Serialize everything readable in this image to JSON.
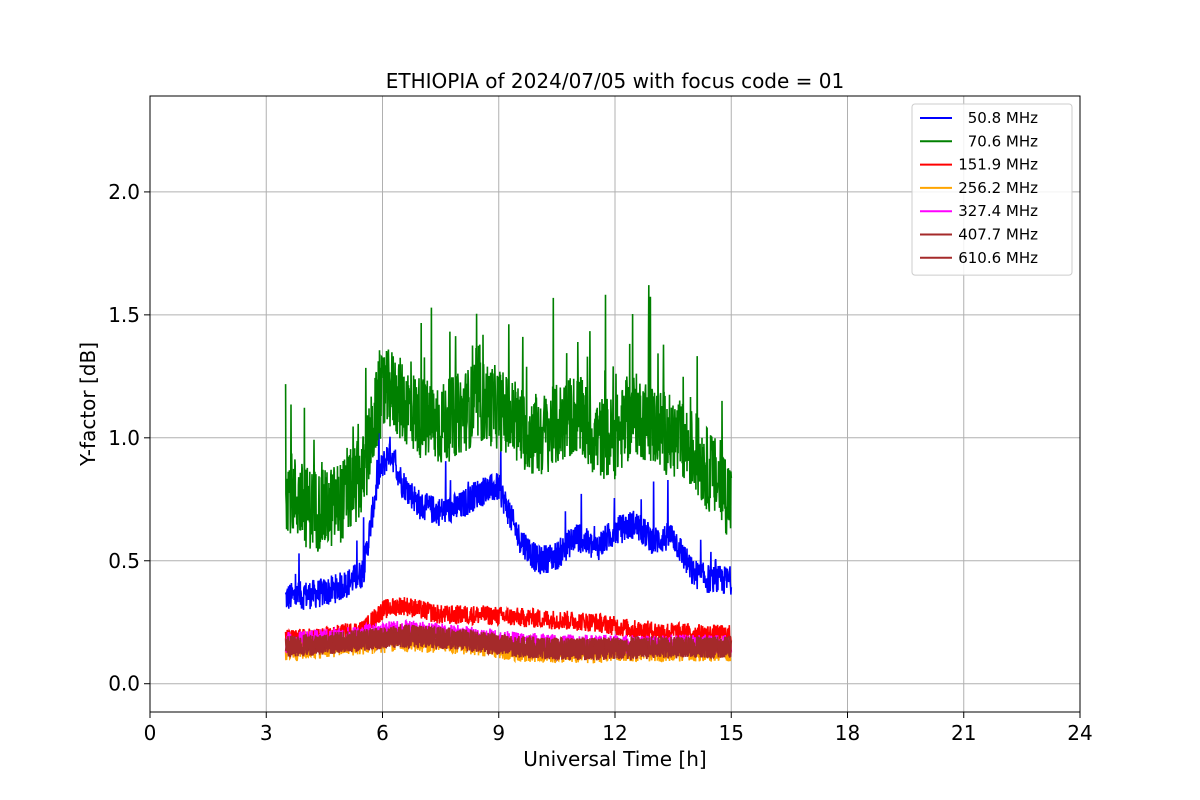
{
  "chart_data": {
    "type": "line",
    "title": "ETHIOPIA of 2024/07/05 with focus code = 01",
    "xlabel": "Universal Time [h]",
    "ylabel": "Y-factor [dB]",
    "xlim": [
      0,
      24
    ],
    "ylim": [
      -0.115,
      2.39
    ],
    "x_ticks": [
      0,
      3,
      6,
      9,
      12,
      15,
      18,
      21,
      24
    ],
    "y_ticks": [
      0.0,
      0.5,
      1.0,
      1.5,
      2.0
    ],
    "grid": true,
    "legend_position": "top-right",
    "series": [
      {
        "name": "50.8 MHz",
        "color": "#0000ff",
        "x": [
          3.5,
          4.0,
          4.5,
          5.0,
          5.5,
          5.9,
          6.2,
          6.5,
          7.0,
          7.5,
          8.0,
          8.5,
          9.0,
          9.5,
          10.0,
          10.5,
          11.0,
          11.5,
          12.0,
          12.5,
          13.0,
          13.5,
          14.0,
          14.5,
          15.0
        ],
        "y": [
          0.35,
          0.36,
          0.37,
          0.4,
          0.45,
          0.85,
          0.95,
          0.82,
          0.72,
          0.7,
          0.72,
          0.78,
          0.8,
          0.6,
          0.5,
          0.52,
          0.6,
          0.55,
          0.62,
          0.65,
          0.58,
          0.6,
          0.45,
          0.42,
          0.42
        ],
        "spread": 0.06
      },
      {
        "name": "70.6 MHz",
        "color": "#008000",
        "x": [
          3.5,
          4.0,
          4.5,
          5.0,
          5.5,
          5.9,
          6.2,
          6.5,
          7.0,
          7.5,
          8.0,
          8.5,
          9.0,
          9.5,
          10.0,
          10.5,
          11.0,
          11.5,
          12.0,
          12.5,
          13.0,
          13.5,
          14.0,
          14.5,
          15.0
        ],
        "y": [
          0.8,
          0.72,
          0.7,
          0.75,
          0.85,
          1.15,
          1.2,
          1.15,
          1.08,
          1.05,
          1.1,
          1.15,
          1.12,
          1.05,
          1.0,
          1.05,
          1.1,
          1.0,
          1.0,
          1.1,
          1.05,
          1.0,
          0.95,
          0.85,
          0.75
        ],
        "spread": 0.17
      },
      {
        "name": "151.9 MHz",
        "color": "#ff0000",
        "x": [
          3.5,
          4.5,
          5.5,
          6.0,
          6.5,
          7.5,
          8.5,
          9.5,
          10.5,
          11.5,
          12.5,
          13.5,
          14.5,
          15.0
        ],
        "y": [
          0.18,
          0.19,
          0.22,
          0.3,
          0.32,
          0.28,
          0.28,
          0.27,
          0.26,
          0.25,
          0.22,
          0.21,
          0.2,
          0.2
        ],
        "spread": 0.04
      },
      {
        "name": "256.2 MHz",
        "color": "#ffa500",
        "x": [
          3.5,
          5.0,
          6.5,
          8.0,
          9.5,
          11.0,
          12.5,
          14.0,
          15.0
        ],
        "y": [
          0.13,
          0.15,
          0.17,
          0.16,
          0.13,
          0.12,
          0.13,
          0.13,
          0.13
        ],
        "spread": 0.04
      },
      {
        "name": "327.4 MHz",
        "color": "#ff00ff",
        "x": [
          3.5,
          5.0,
          6.5,
          8.0,
          9.5,
          11.0,
          12.5,
          14.0,
          15.0
        ],
        "y": [
          0.17,
          0.19,
          0.22,
          0.2,
          0.17,
          0.16,
          0.16,
          0.16,
          0.16
        ],
        "spread": 0.04
      },
      {
        "name": "407.7 MHz",
        "color": "#a52a2a",
        "x": [
          3.5,
          5.0,
          6.5,
          8.0,
          9.5,
          11.0,
          12.5,
          14.0,
          15.0
        ],
        "y": [
          0.15,
          0.17,
          0.2,
          0.18,
          0.15,
          0.14,
          0.15,
          0.15,
          0.15
        ],
        "spread": 0.045
      },
      {
        "name": "610.6 MHz",
        "color": "#a52a2a",
        "x": [
          3.5,
          5.0,
          6.5,
          8.0,
          9.5,
          11.0,
          12.5,
          14.0,
          15.0
        ],
        "y": [
          0.15,
          0.17,
          0.19,
          0.18,
          0.15,
          0.14,
          0.14,
          0.15,
          0.15
        ],
        "spread": 0.045
      }
    ]
  }
}
